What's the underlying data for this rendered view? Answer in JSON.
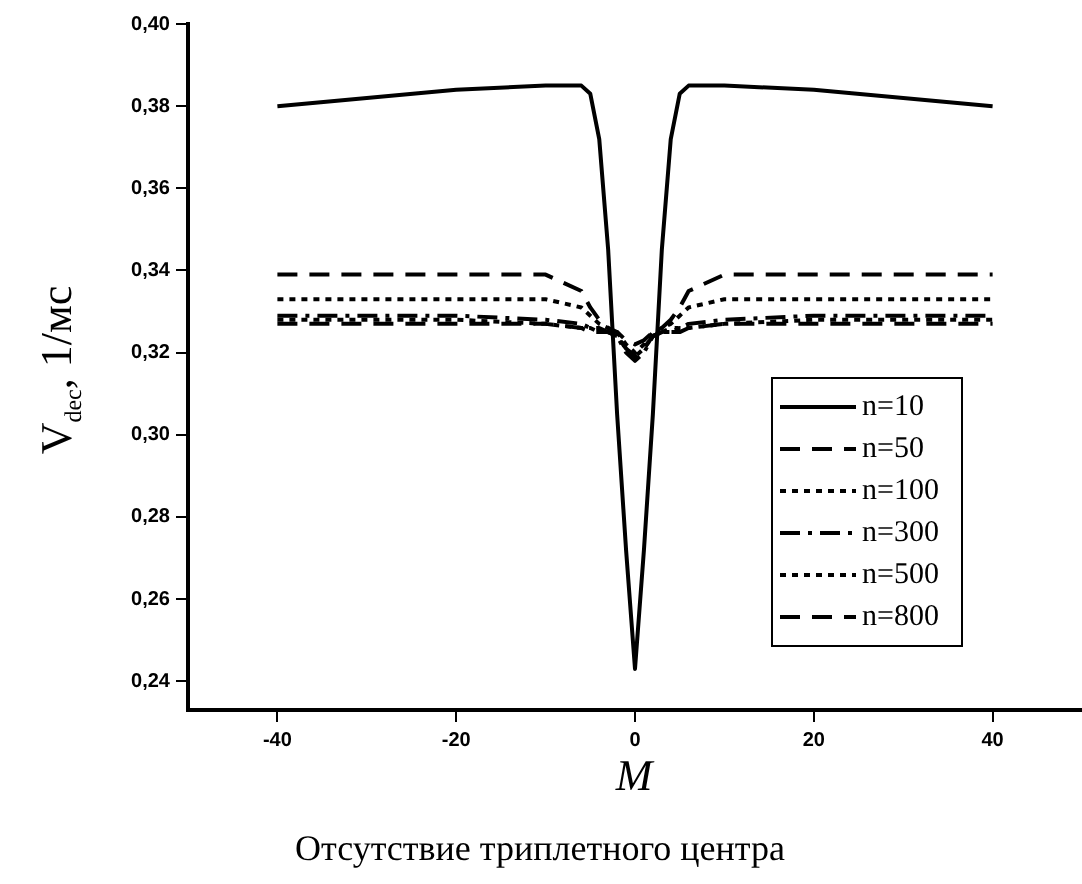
{
  "chart_data": {
    "type": "line",
    "xlabel": "M",
    "ylabel": "V$_{dec}$, 1/мс",
    "annotations": [
      "Отсутствие триплетного центра"
    ],
    "x": [
      -40,
      -30,
      -20,
      -10,
      -6,
      -5,
      -4,
      -3,
      -2,
      -1,
      0,
      1,
      2,
      3,
      4,
      5,
      6,
      10,
      20,
      30,
      40
    ],
    "xlim": [
      -50,
      50
    ],
    "xticks": [
      -40,
      -20,
      0,
      20,
      40
    ],
    "ylim": [
      0.233,
      0.4
    ],
    "yticks": [
      {
        "value": 0.24,
        "label": "0,24"
      },
      {
        "value": 0.26,
        "label": "0,26"
      },
      {
        "value": 0.28,
        "label": "0,28"
      },
      {
        "value": 0.3,
        "label": "0,30"
      },
      {
        "value": 0.32,
        "label": "0,32"
      },
      {
        "value": 0.34,
        "label": "0,34"
      },
      {
        "value": 0.36,
        "label": "0,36"
      },
      {
        "value": 0.38,
        "label": "0,38"
      },
      {
        "value": 0.4,
        "label": "0,40"
      }
    ],
    "grid": false,
    "legend": "bottom right",
    "marker": "none",
    "series": [
      {
        "name": "n=10",
        "color": "#000000",
        "line_style": "solid",
        "values": [
          0.38,
          0.382,
          0.384,
          0.385,
          0.385,
          0.383,
          0.372,
          0.345,
          0.305,
          0.272,
          0.243,
          0.272,
          0.305,
          0.345,
          0.372,
          0.383,
          0.385,
          0.385,
          0.384,
          0.382,
          0.38
        ]
      },
      {
        "name": "n=50",
        "color": "#000000",
        "line_style": "dashed",
        "values": [
          0.339,
          0.339,
          0.339,
          0.339,
          0.335,
          0.331,
          0.328,
          0.326,
          0.325,
          0.323,
          0.322,
          0.323,
          0.325,
          0.326,
          0.328,
          0.331,
          0.335,
          0.339,
          0.339,
          0.339,
          0.339
        ]
      },
      {
        "name": "n=100",
        "color": "#000000",
        "line_style": "dotted",
        "values": [
          0.333,
          0.333,
          0.333,
          0.333,
          0.331,
          0.329,
          0.327,
          0.326,
          0.325,
          0.322,
          0.32,
          0.322,
          0.325,
          0.326,
          0.327,
          0.329,
          0.331,
          0.333,
          0.333,
          0.333,
          0.333
        ]
      },
      {
        "name": "n=300",
        "color": "#000000",
        "line_style": "dashdot",
        "values": [
          0.329,
          0.329,
          0.329,
          0.328,
          0.327,
          0.326,
          0.326,
          0.325,
          0.324,
          0.32,
          0.318,
          0.32,
          0.324,
          0.325,
          0.326,
          0.326,
          0.327,
          0.328,
          0.329,
          0.329,
          0.329
        ]
      },
      {
        "name": "n=500",
        "color": "#000000",
        "line_style": "dotted",
        "values": [
          0.328,
          0.328,
          0.328,
          0.327,
          0.326,
          0.326,
          0.325,
          0.325,
          0.324,
          0.321,
          0.319,
          0.321,
          0.324,
          0.325,
          0.325,
          0.326,
          0.326,
          0.327,
          0.328,
          0.328,
          0.328
        ]
      },
      {
        "name": "n=800",
        "color": "#000000",
        "line_style": "dashed",
        "values": [
          0.327,
          0.327,
          0.327,
          0.327,
          0.326,
          0.325,
          0.325,
          0.325,
          0.324,
          0.321,
          0.319,
          0.321,
          0.324,
          0.325,
          0.325,
          0.325,
          0.326,
          0.327,
          0.327,
          0.327,
          0.327
        ]
      }
    ]
  }
}
